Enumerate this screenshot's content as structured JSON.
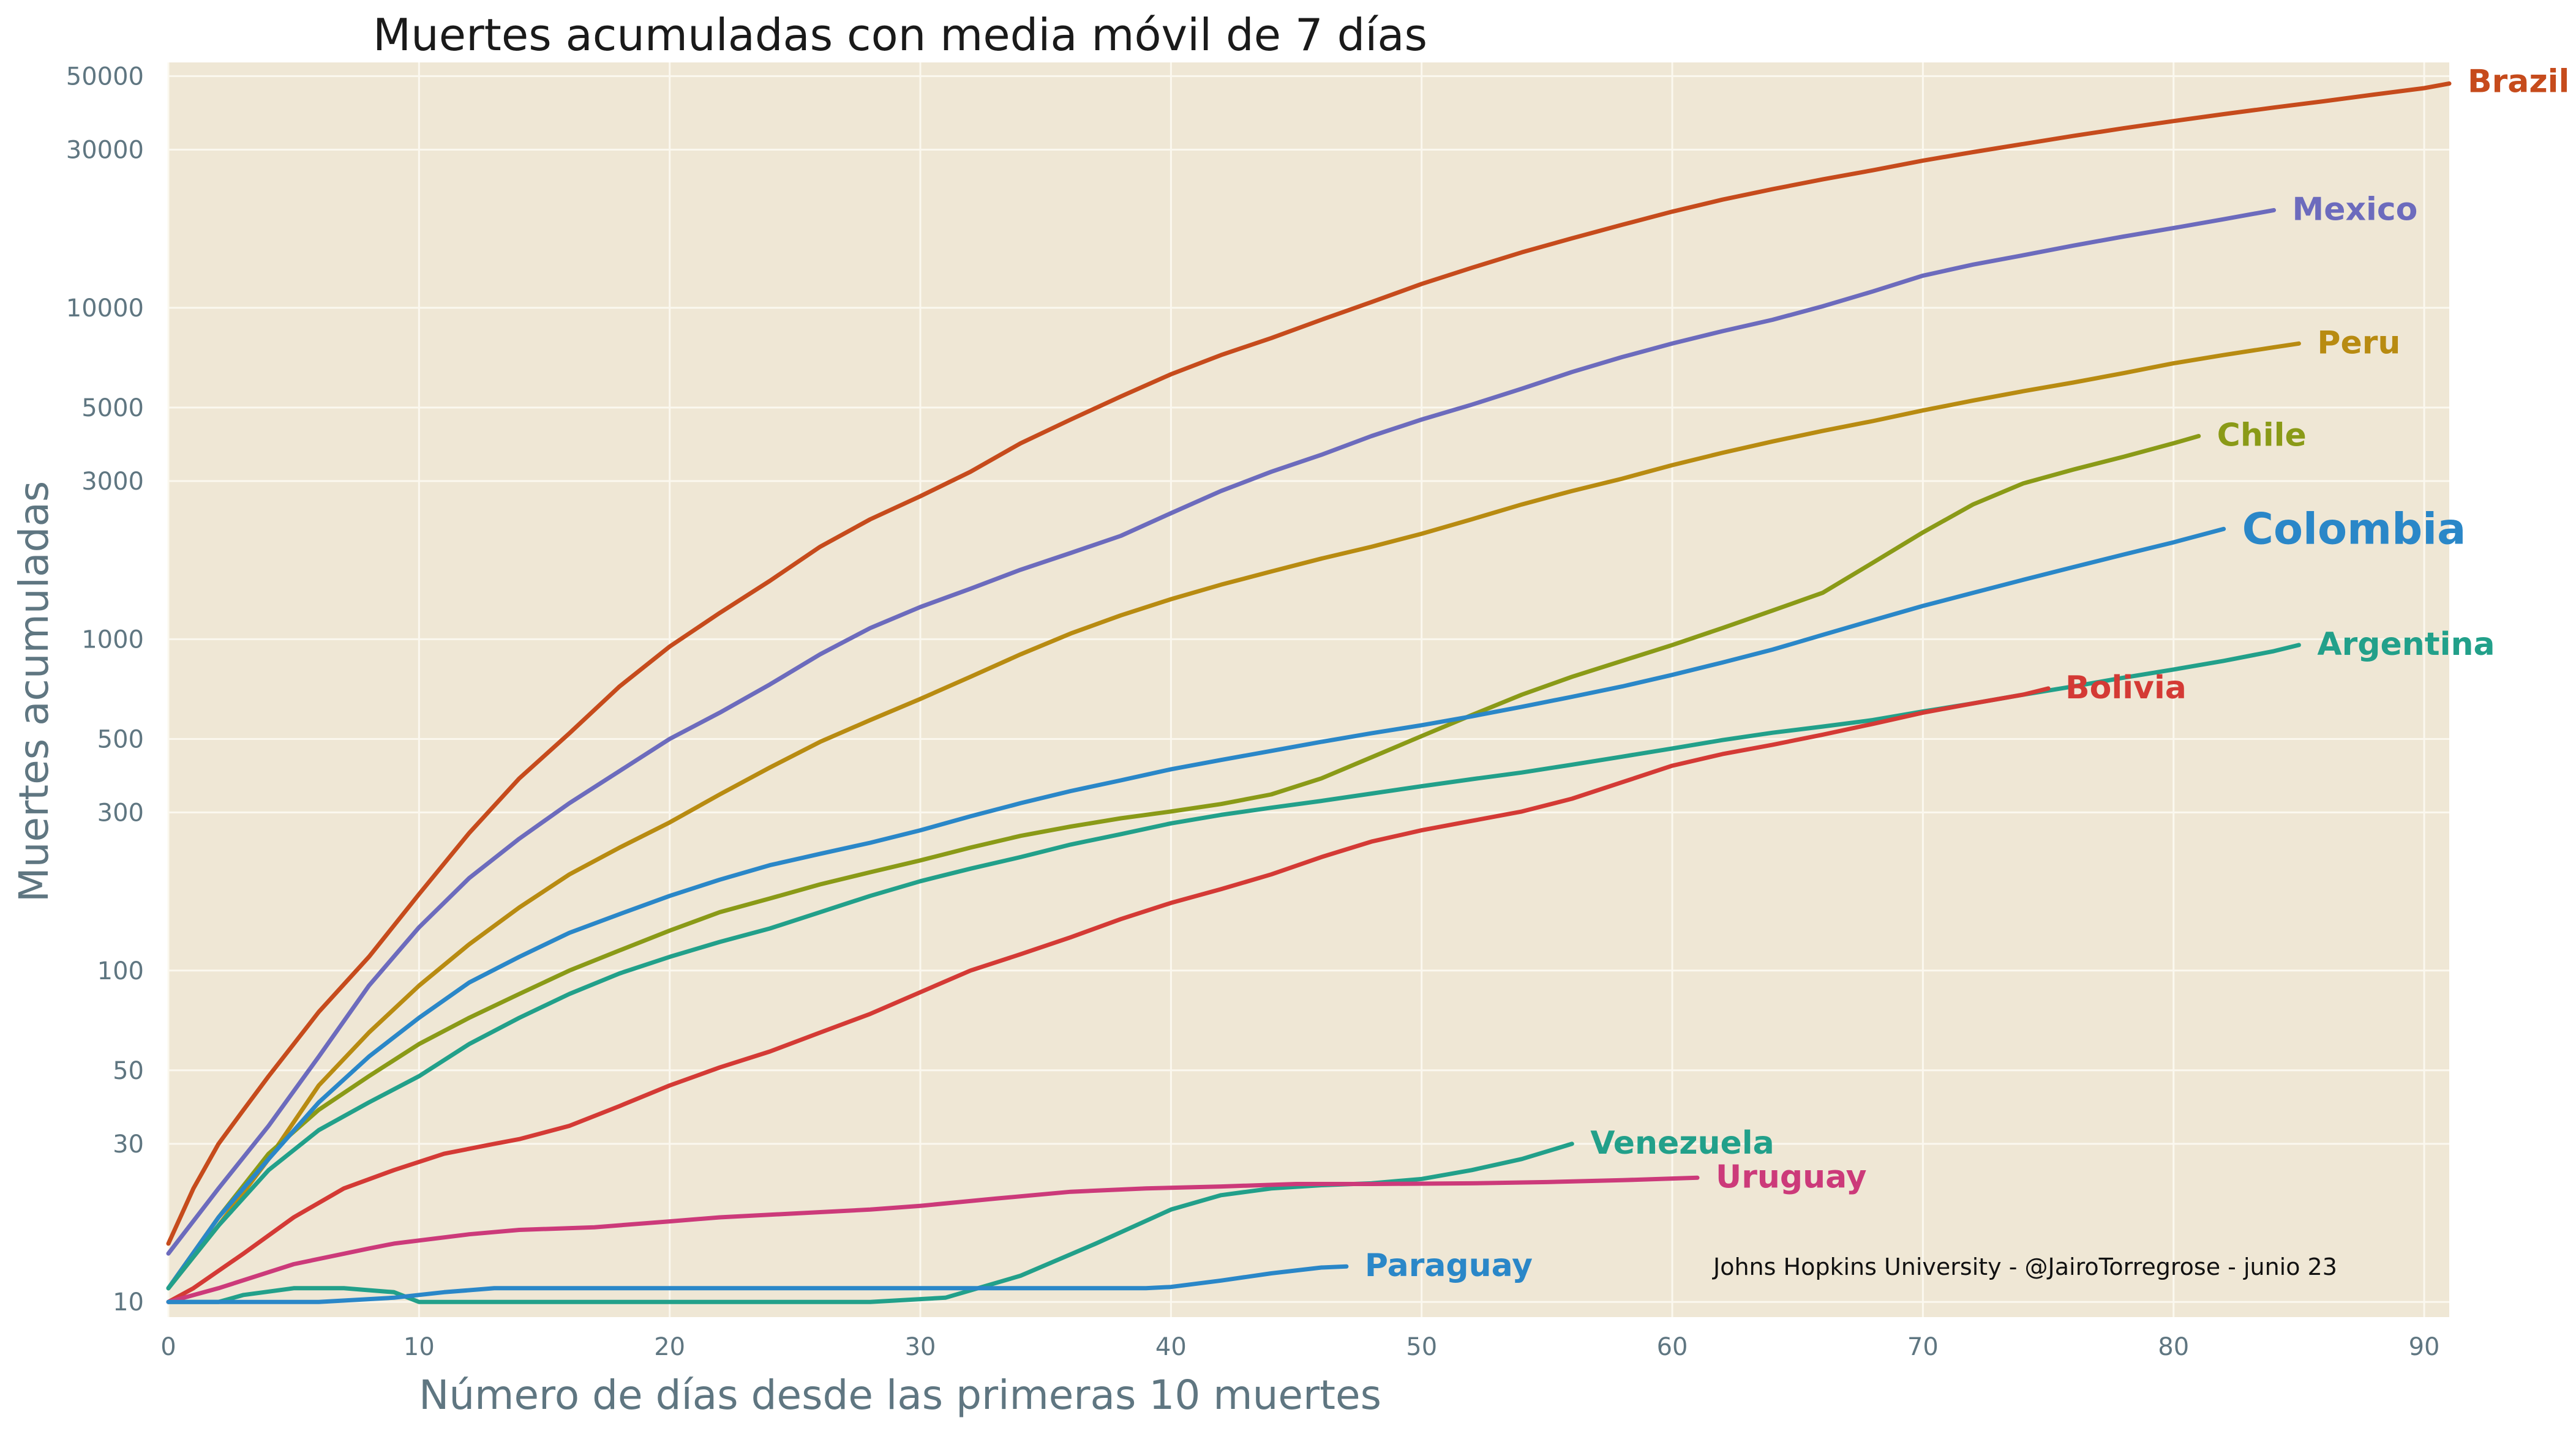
{
  "chart_data": {
    "type": "line",
    "title": "Muertes acumuladas con media móvil de 7 días",
    "xlabel": "Número de días desde las primeras 10 muertes",
    "ylabel": "Muertes acumuladas",
    "y_scale": "log",
    "xlim": [
      0,
      91
    ],
    "ylim": [
      9,
      55000
    ],
    "x_ticks": [
      0,
      10,
      20,
      30,
      40,
      50,
      60,
      70,
      80,
      90
    ],
    "y_ticks": [
      10,
      30,
      50,
      100,
      300,
      500,
      1000,
      3000,
      5000,
      10000,
      30000,
      50000
    ],
    "grid": true,
    "background": "#efe7d5",
    "annotation": "Johns Hopkins University - @JairoTorregrose - junio 23",
    "series": [
      {
        "name": "Brazil",
        "color": "#c64b1c",
        "x": [
          0,
          1,
          2,
          3,
          4,
          5,
          6,
          8,
          10,
          12,
          14,
          16,
          18,
          20,
          22,
          24,
          26,
          28,
          30,
          32,
          34,
          36,
          38,
          40,
          42,
          44,
          46,
          48,
          50,
          52,
          54,
          56,
          58,
          60,
          62,
          64,
          66,
          68,
          70,
          72,
          74,
          76,
          78,
          80,
          82,
          84,
          86,
          88,
          90,
          91
        ],
        "y": [
          15,
          22,
          30,
          38,
          48,
          60,
          75,
          110,
          170,
          260,
          380,
          520,
          720,
          950,
          1200,
          1500,
          1900,
          2300,
          2700,
          3200,
          3900,
          4600,
          5400,
          6300,
          7200,
          8100,
          9200,
          10400,
          11800,
          13200,
          14700,
          16200,
          17800,
          19500,
          21200,
          22800,
          24400,
          26000,
          27800,
          29500,
          31200,
          33000,
          34800,
          36600,
          38400,
          40200,
          42000,
          44000,
          46000,
          47500
        ]
      },
      {
        "name": "Mexico",
        "color": "#6c6bbd",
        "x": [
          0,
          2,
          4,
          6,
          8,
          10,
          12,
          14,
          16,
          18,
          20,
          22,
          24,
          26,
          28,
          30,
          32,
          34,
          36,
          38,
          40,
          42,
          44,
          46,
          48,
          50,
          52,
          54,
          56,
          58,
          60,
          62,
          64,
          66,
          68,
          70,
          72,
          74,
          76,
          78,
          80,
          82,
          84
        ],
        "y": [
          14,
          22,
          34,
          55,
          90,
          135,
          190,
          250,
          320,
          400,
          500,
          600,
          730,
          900,
          1080,
          1250,
          1420,
          1620,
          1820,
          2050,
          2400,
          2800,
          3200,
          3600,
          4100,
          4600,
          5100,
          5700,
          6400,
          7100,
          7800,
          8500,
          9200,
          10100,
          11200,
          12500,
          13500,
          14400,
          15400,
          16400,
          17400,
          18500,
          19700
        ]
      },
      {
        "name": "Peru",
        "color": "#b88b11",
        "x": [
          0,
          2,
          4,
          6,
          8,
          10,
          12,
          14,
          16,
          18,
          20,
          22,
          24,
          26,
          28,
          30,
          32,
          34,
          36,
          38,
          40,
          42,
          44,
          46,
          48,
          50,
          52,
          54,
          56,
          58,
          60,
          62,
          64,
          66,
          68,
          70,
          72,
          74,
          76,
          78,
          80,
          82,
          84,
          85
        ],
        "y": [
          11,
          17,
          27,
          45,
          65,
          90,
          120,
          155,
          195,
          235,
          280,
          340,
          410,
          490,
          570,
          660,
          770,
          900,
          1040,
          1180,
          1320,
          1460,
          1600,
          1750,
          1900,
          2080,
          2300,
          2550,
          2800,
          3050,
          3350,
          3650,
          3950,
          4250,
          4550,
          4900,
          5250,
          5600,
          5950,
          6350,
          6800,
          7200,
          7600,
          7800
        ]
      },
      {
        "name": "Chile",
        "color": "#8a9a17",
        "x": [
          0,
          2,
          4,
          6,
          8,
          10,
          12,
          14,
          16,
          18,
          20,
          22,
          24,
          26,
          28,
          30,
          32,
          34,
          36,
          38,
          40,
          42,
          44,
          46,
          48,
          50,
          52,
          54,
          56,
          58,
          60,
          62,
          64,
          66,
          68,
          70,
          72,
          74,
          76,
          78,
          80,
          81
        ],
        "y": [
          11,
          18,
          28,
          38,
          48,
          60,
          72,
          85,
          100,
          115,
          132,
          150,
          165,
          182,
          198,
          215,
          235,
          255,
          272,
          288,
          302,
          318,
          340,
          380,
          440,
          510,
          590,
          680,
          770,
          860,
          960,
          1080,
          1220,
          1380,
          1700,
          2100,
          2550,
          2950,
          3250,
          3550,
          3900,
          4100
        ]
      },
      {
        "name": "Colombia",
        "color": "#2a87c8",
        "x": [
          0,
          2,
          4,
          6,
          8,
          10,
          12,
          14,
          16,
          18,
          20,
          22,
          24,
          26,
          28,
          30,
          32,
          34,
          36,
          38,
          40,
          42,
          44,
          46,
          48,
          50,
          52,
          54,
          56,
          58,
          60,
          62,
          64,
          66,
          68,
          70,
          72,
          74,
          76,
          78,
          80,
          82
        ],
        "y": [
          11,
          18,
          27,
          40,
          55,
          72,
          92,
          110,
          130,
          148,
          168,
          188,
          208,
          225,
          243,
          265,
          292,
          320,
          348,
          375,
          405,
          432,
          460,
          490,
          520,
          550,
          585,
          625,
          670,
          720,
          780,
          850,
          930,
          1030,
          1140,
          1260,
          1380,
          1510,
          1650,
          1800,
          1960,
          2150
        ]
      },
      {
        "name": "Argentina",
        "color": "#22a08a",
        "x": [
          0,
          2,
          4,
          6,
          8,
          10,
          12,
          14,
          16,
          18,
          20,
          22,
          24,
          26,
          28,
          30,
          32,
          34,
          36,
          38,
          40,
          42,
          44,
          46,
          48,
          50,
          52,
          54,
          56,
          58,
          60,
          62,
          64,
          66,
          68,
          70,
          72,
          74,
          76,
          78,
          80,
          82,
          84,
          85
        ],
        "y": [
          11,
          17,
          25,
          33,
          40,
          48,
          60,
          72,
          85,
          98,
          110,
          122,
          134,
          150,
          168,
          186,
          203,
          220,
          240,
          258,
          278,
          295,
          310,
          325,
          342,
          360,
          378,
          396,
          418,
          442,
          468,
          496,
          522,
          545,
          570,
          605,
          640,
          680,
          720,
          765,
          810,
          860,
          920,
          960
        ]
      },
      {
        "name": "Bolivia",
        "color": "#d43a35",
        "x": [
          0,
          1,
          3,
          5,
          7,
          9,
          11,
          13,
          14,
          16,
          18,
          20,
          22,
          24,
          26,
          28,
          30,
          32,
          34,
          36,
          38,
          40,
          42,
          44,
          46,
          48,
          50,
          52,
          54,
          56,
          58,
          60,
          62,
          64,
          66,
          68,
          70,
          72,
          74,
          75
        ],
        "y": [
          10,
          11,
          14,
          18,
          22,
          25,
          28,
          30,
          31,
          34,
          39,
          45,
          51,
          57,
          65,
          74,
          86,
          100,
          112,
          126,
          143,
          160,
          176,
          195,
          220,
          245,
          265,
          283,
          302,
          330,
          370,
          415,
          450,
          480,
          515,
          555,
          600,
          640,
          680,
          710
        ]
      },
      {
        "name": "Venezuela",
        "color": "#22a08a",
        "x": [
          0,
          2,
          3,
          5,
          6,
          7,
          9,
          10,
          14,
          20,
          26,
          28,
          31,
          34,
          37,
          40,
          42,
          44,
          46,
          48,
          50,
          52,
          54,
          56
        ],
        "y": [
          10,
          10,
          10.5,
          11,
          11,
          11,
          10.7,
          10,
          10,
          10,
          10,
          10,
          10.3,
          12,
          15,
          19,
          21,
          22,
          22.5,
          22.8,
          23.5,
          25,
          27,
          30
        ]
      },
      {
        "name": "Uruguay",
        "color": "#cc3a7a",
        "x": [
          0,
          2,
          5,
          8,
          9,
          12,
          14,
          17,
          20,
          22,
          25,
          28,
          30,
          33,
          36,
          39,
          42,
          45,
          48,
          52,
          55,
          58,
          61
        ],
        "y": [
          10,
          11,
          13,
          14.5,
          15,
          16,
          16.5,
          16.8,
          17.5,
          18,
          18.5,
          19,
          19.5,
          20.5,
          21.5,
          22,
          22.3,
          22.7,
          22.7,
          22.8,
          23,
          23.3,
          23.7
        ]
      },
      {
        "name": "Paraguay",
        "color": "#2a87c8",
        "x": [
          0,
          6,
          9,
          11,
          13,
          17,
          20,
          24,
          28,
          32,
          36,
          39,
          40,
          42,
          44,
          46,
          47
        ],
        "y": [
          10,
          10,
          10.3,
          10.7,
          11,
          11,
          11,
          11,
          11,
          11,
          11,
          11,
          11.1,
          11.6,
          12.2,
          12.7,
          12.8
        ]
      }
    ]
  }
}
